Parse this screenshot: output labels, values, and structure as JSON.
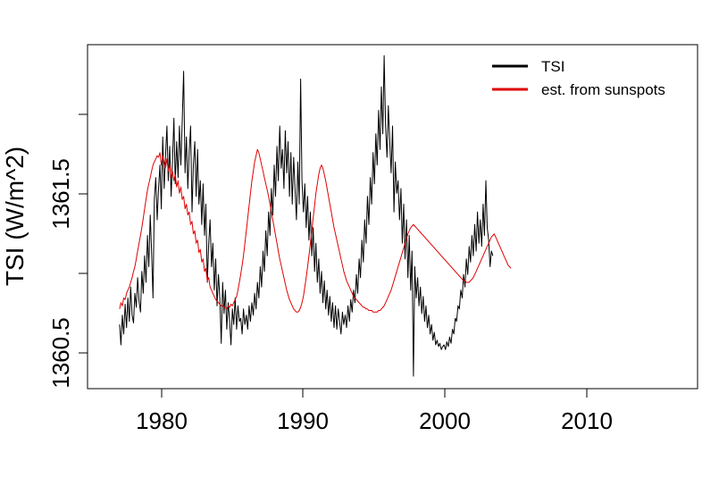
{
  "chart_data": {
    "type": "line",
    "xlabel": "",
    "ylabel": "TSI (W/m^2)",
    "xlim": [
      1973.7,
      2017.5
    ],
    "ylim": [
      1360.27,
      1362.47
    ],
    "x_ticks": [
      1980,
      1990,
      2000,
      2010
    ],
    "x_tick_labels": [
      "1980",
      "1990",
      "2000",
      "2010"
    ],
    "y_ticks": [
      1360.5,
      1361.0,
      1361.5,
      1362.0
    ],
    "y_tick_labels": [
      "1360.5",
      "",
      "1361.5",
      ""
    ],
    "grid": false,
    "legend_position": "top-right",
    "x_start": 1976.0,
    "x_step": 0.1,
    "series": [
      {
        "name": "TSI",
        "color": "#000000",
        "values": [
          1360.68,
          1360.55,
          1360.74,
          1360.62,
          1360.81,
          1360.66,
          1360.85,
          1360.7,
          1360.92,
          1360.74,
          1360.69,
          1360.88,
          1360.79,
          1360.98,
          1360.83,
          1360.76,
          1361.02,
          1360.88,
          1361.12,
          1360.95,
          1361.25,
          1361.05,
          1361.38,
          1361.15,
          1360.85,
          1361.48,
          1361.62,
          1361.35,
          1361.55,
          1361.7,
          1361.42,
          1361.88,
          1361.55,
          1361.75,
          1361.95,
          1361.6,
          1361.82,
          1361.5,
          1361.72,
          1362.0,
          1361.58,
          1361.85,
          1361.62,
          1361.95,
          1361.7,
          1361.98,
          1362.3,
          1361.65,
          1361.88,
          1361.55,
          1361.78,
          1361.95,
          1361.4,
          1361.7,
          1361.85,
          1361.5,
          1361.8,
          1361.45,
          1361.6,
          1361.32,
          1361.58,
          1361.25,
          1361.45,
          1360.95,
          1361.2,
          1361.35,
          1361.05,
          1361.2,
          1360.9,
          1361.1,
          1360.8,
          1361.0,
          1360.85,
          1360.56,
          1360.95,
          1360.75,
          1360.9,
          1360.65,
          1360.82,
          1360.7,
          1360.55,
          1360.78,
          1360.68,
          1360.85,
          1360.65,
          1360.8,
          1360.7,
          1360.72,
          1360.62,
          1360.78,
          1360.68,
          1360.74,
          1360.65,
          1360.8,
          1360.7,
          1360.82,
          1360.74,
          1360.88,
          1360.78,
          1360.95,
          1360.85,
          1361.05,
          1360.92,
          1361.15,
          1361.02,
          1361.28,
          1361.12,
          1361.4,
          1361.25,
          1361.55,
          1361.38,
          1361.7,
          1361.5,
          1361.82,
          1361.6,
          1361.95,
          1361.68,
          1361.8,
          1361.55,
          1361.92,
          1361.65,
          1361.85,
          1361.5,
          1361.78,
          1361.45,
          1361.75,
          1361.55,
          1361.35,
          1361.72,
          1361.45,
          1362.25,
          1361.6,
          1361.4,
          1361.58,
          1361.3,
          1361.5,
          1361.22,
          1361.4,
          1361.12,
          1361.3,
          1361.02,
          1361.2,
          1360.95,
          1361.1,
          1360.88,
          1361.02,
          1360.82,
          1360.96,
          1360.78,
          1360.9,
          1360.74,
          1360.86,
          1360.7,
          1360.82,
          1360.66,
          1360.8,
          1360.65,
          1360.78,
          1360.7,
          1360.62,
          1360.76,
          1360.68,
          1360.74,
          1360.66,
          1360.8,
          1360.7,
          1360.84,
          1360.76,
          1360.9,
          1360.82,
          1361.0,
          1360.88,
          1361.1,
          1360.98,
          1361.22,
          1361.08,
          1361.35,
          1361.2,
          1361.5,
          1361.32,
          1361.62,
          1361.45,
          1361.78,
          1361.58,
          1361.9,
          1361.7,
          1362.05,
          1361.8,
          1362.2,
          1361.9,
          1362.4,
          1361.95,
          1361.75,
          1362.08,
          1361.85,
          1361.65,
          1361.95,
          1361.4,
          1361.72,
          1361.52,
          1361.6,
          1361.35,
          1361.55,
          1361.2,
          1361.45,
          1361.1,
          1361.35,
          1360.98,
          1361.25,
          1360.9,
          1361.15,
          1360.35,
          1361.05,
          1360.85,
          1360.98,
          1360.8,
          1360.92,
          1360.75,
          1360.86,
          1360.7,
          1360.8,
          1360.66,
          1360.74,
          1360.62,
          1360.68,
          1360.58,
          1360.63,
          1360.55,
          1360.58,
          1360.54,
          1360.56,
          1360.52,
          1360.54,
          1360.55,
          1360.52,
          1360.57,
          1360.54,
          1360.6,
          1360.56,
          1360.65,
          1360.62,
          1360.72,
          1360.7,
          1360.8,
          1360.78,
          1360.9,
          1360.85,
          1361.0,
          1360.92,
          1361.1,
          1361.0,
          1361.18,
          1361.08,
          1361.25,
          1361.12,
          1361.32,
          1361.15,
          1361.4,
          1361.2,
          1361.35,
          1361.18,
          1361.45,
          1361.25,
          1361.6,
          1361.3,
          1361.22,
          1361.05,
          1361.15,
          1361.12
        ]
      },
      {
        "name": "est. from sunspots",
        "color": "#e00000",
        "values": [
          1360.78,
          1360.82,
          1360.8,
          1360.85,
          1360.84,
          1360.88,
          1360.9,
          1360.92,
          1360.95,
          1360.98,
          1361.02,
          1361.05,
          1361.1,
          1361.15,
          1361.2,
          1361.25,
          1361.3,
          1361.36,
          1361.42,
          1361.48,
          1361.54,
          1361.58,
          1361.62,
          1361.66,
          1361.7,
          1361.72,
          1361.74,
          1361.76,
          1361.75,
          1361.78,
          1361.7,
          1361.76,
          1361.72,
          1361.68,
          1361.74,
          1361.66,
          1361.7,
          1361.62,
          1361.66,
          1361.6,
          1361.64,
          1361.56,
          1361.6,
          1361.52,
          1361.56,
          1361.48,
          1361.5,
          1361.42,
          1361.45,
          1361.38,
          1361.4,
          1361.32,
          1361.34,
          1361.26,
          1361.28,
          1361.2,
          1361.22,
          1361.14,
          1361.16,
          1361.08,
          1361.1,
          1361.02,
          1361.04,
          1360.96,
          1360.98,
          1360.92,
          1360.9,
          1360.88,
          1360.86,
          1360.84,
          1360.83,
          1360.82,
          1360.81,
          1360.8,
          1360.8,
          1360.79,
          1360.79,
          1360.78,
          1360.8,
          1360.79,
          1360.81,
          1360.8,
          1360.82,
          1360.84,
          1360.86,
          1360.9,
          1360.95,
          1361.0,
          1361.06,
          1361.12,
          1361.2,
          1361.28,
          1361.36,
          1361.44,
          1361.52,
          1361.6,
          1361.66,
          1361.72,
          1361.76,
          1361.8,
          1361.78,
          1361.74,
          1361.7,
          1361.66,
          1361.62,
          1361.58,
          1361.54,
          1361.5,
          1361.45,
          1361.4,
          1361.35,
          1361.3,
          1361.25,
          1361.2,
          1361.15,
          1361.1,
          1361.06,
          1361.02,
          1360.98,
          1360.94,
          1360.9,
          1360.87,
          1360.84,
          1360.82,
          1360.8,
          1360.78,
          1360.77,
          1360.76,
          1360.76,
          1360.77,
          1360.79,
          1360.82,
          1360.86,
          1360.92,
          1360.98,
          1361.05,
          1361.12,
          1361.2,
          1361.28,
          1361.36,
          1361.44,
          1361.52,
          1361.58,
          1361.64,
          1361.68,
          1361.7,
          1361.68,
          1361.64,
          1361.6,
          1361.55,
          1361.5,
          1361.45,
          1361.4,
          1361.35,
          1361.3,
          1361.26,
          1361.22,
          1361.18,
          1361.14,
          1361.1,
          1361.06,
          1361.02,
          1360.99,
          1360.96,
          1360.94,
          1360.92,
          1360.9,
          1360.88,
          1360.86,
          1360.85,
          1360.84,
          1360.83,
          1360.82,
          1360.81,
          1360.8,
          1360.79,
          1360.79,
          1360.78,
          1360.78,
          1360.77,
          1360.77,
          1360.77,
          1360.76,
          1360.76,
          1360.76,
          1360.76,
          1360.77,
          1360.77,
          1360.78,
          1360.79,
          1360.8,
          1360.82,
          1360.84,
          1360.86,
          1360.88,
          1360.9,
          1360.93,
          1360.96,
          1360.99,
          1361.02,
          1361.05,
          1361.08,
          1361.11,
          1361.14,
          1361.17,
          1361.2,
          1361.23,
          1361.26,
          1361.28,
          1361.3,
          1361.31,
          1361.32,
          1361.31,
          1361.3,
          1361.29,
          1361.28,
          1361.27,
          1361.26,
          1361.25,
          1361.24,
          1361.23,
          1361.22,
          1361.21,
          1361.2,
          1361.19,
          1361.18,
          1361.17,
          1361.16,
          1361.15,
          1361.14,
          1361.13,
          1361.12,
          1361.11,
          1361.1,
          1361.09,
          1361.08,
          1361.07,
          1361.06,
          1361.05,
          1361.04,
          1361.03,
          1361.02,
          1361.01,
          1361.0,
          1360.99,
          1360.98,
          1360.97,
          1360.96,
          1360.96,
          1360.95,
          1360.95,
          1360.95,
          1360.96,
          1360.97,
          1360.98,
          1361.0,
          1361.02,
          1361.04,
          1361.06,
          1361.08,
          1361.1,
          1361.12,
          1361.14,
          1361.16,
          1361.18,
          1361.2,
          1361.22,
          1361.24,
          1361.25,
          1361.26,
          1361.24,
          1361.22,
          1361.2,
          1361.18,
          1361.16,
          1361.14,
          1361.12,
          1361.1,
          1361.08,
          1361.06,
          1361.05,
          1361.04
        ]
      }
    ]
  }
}
